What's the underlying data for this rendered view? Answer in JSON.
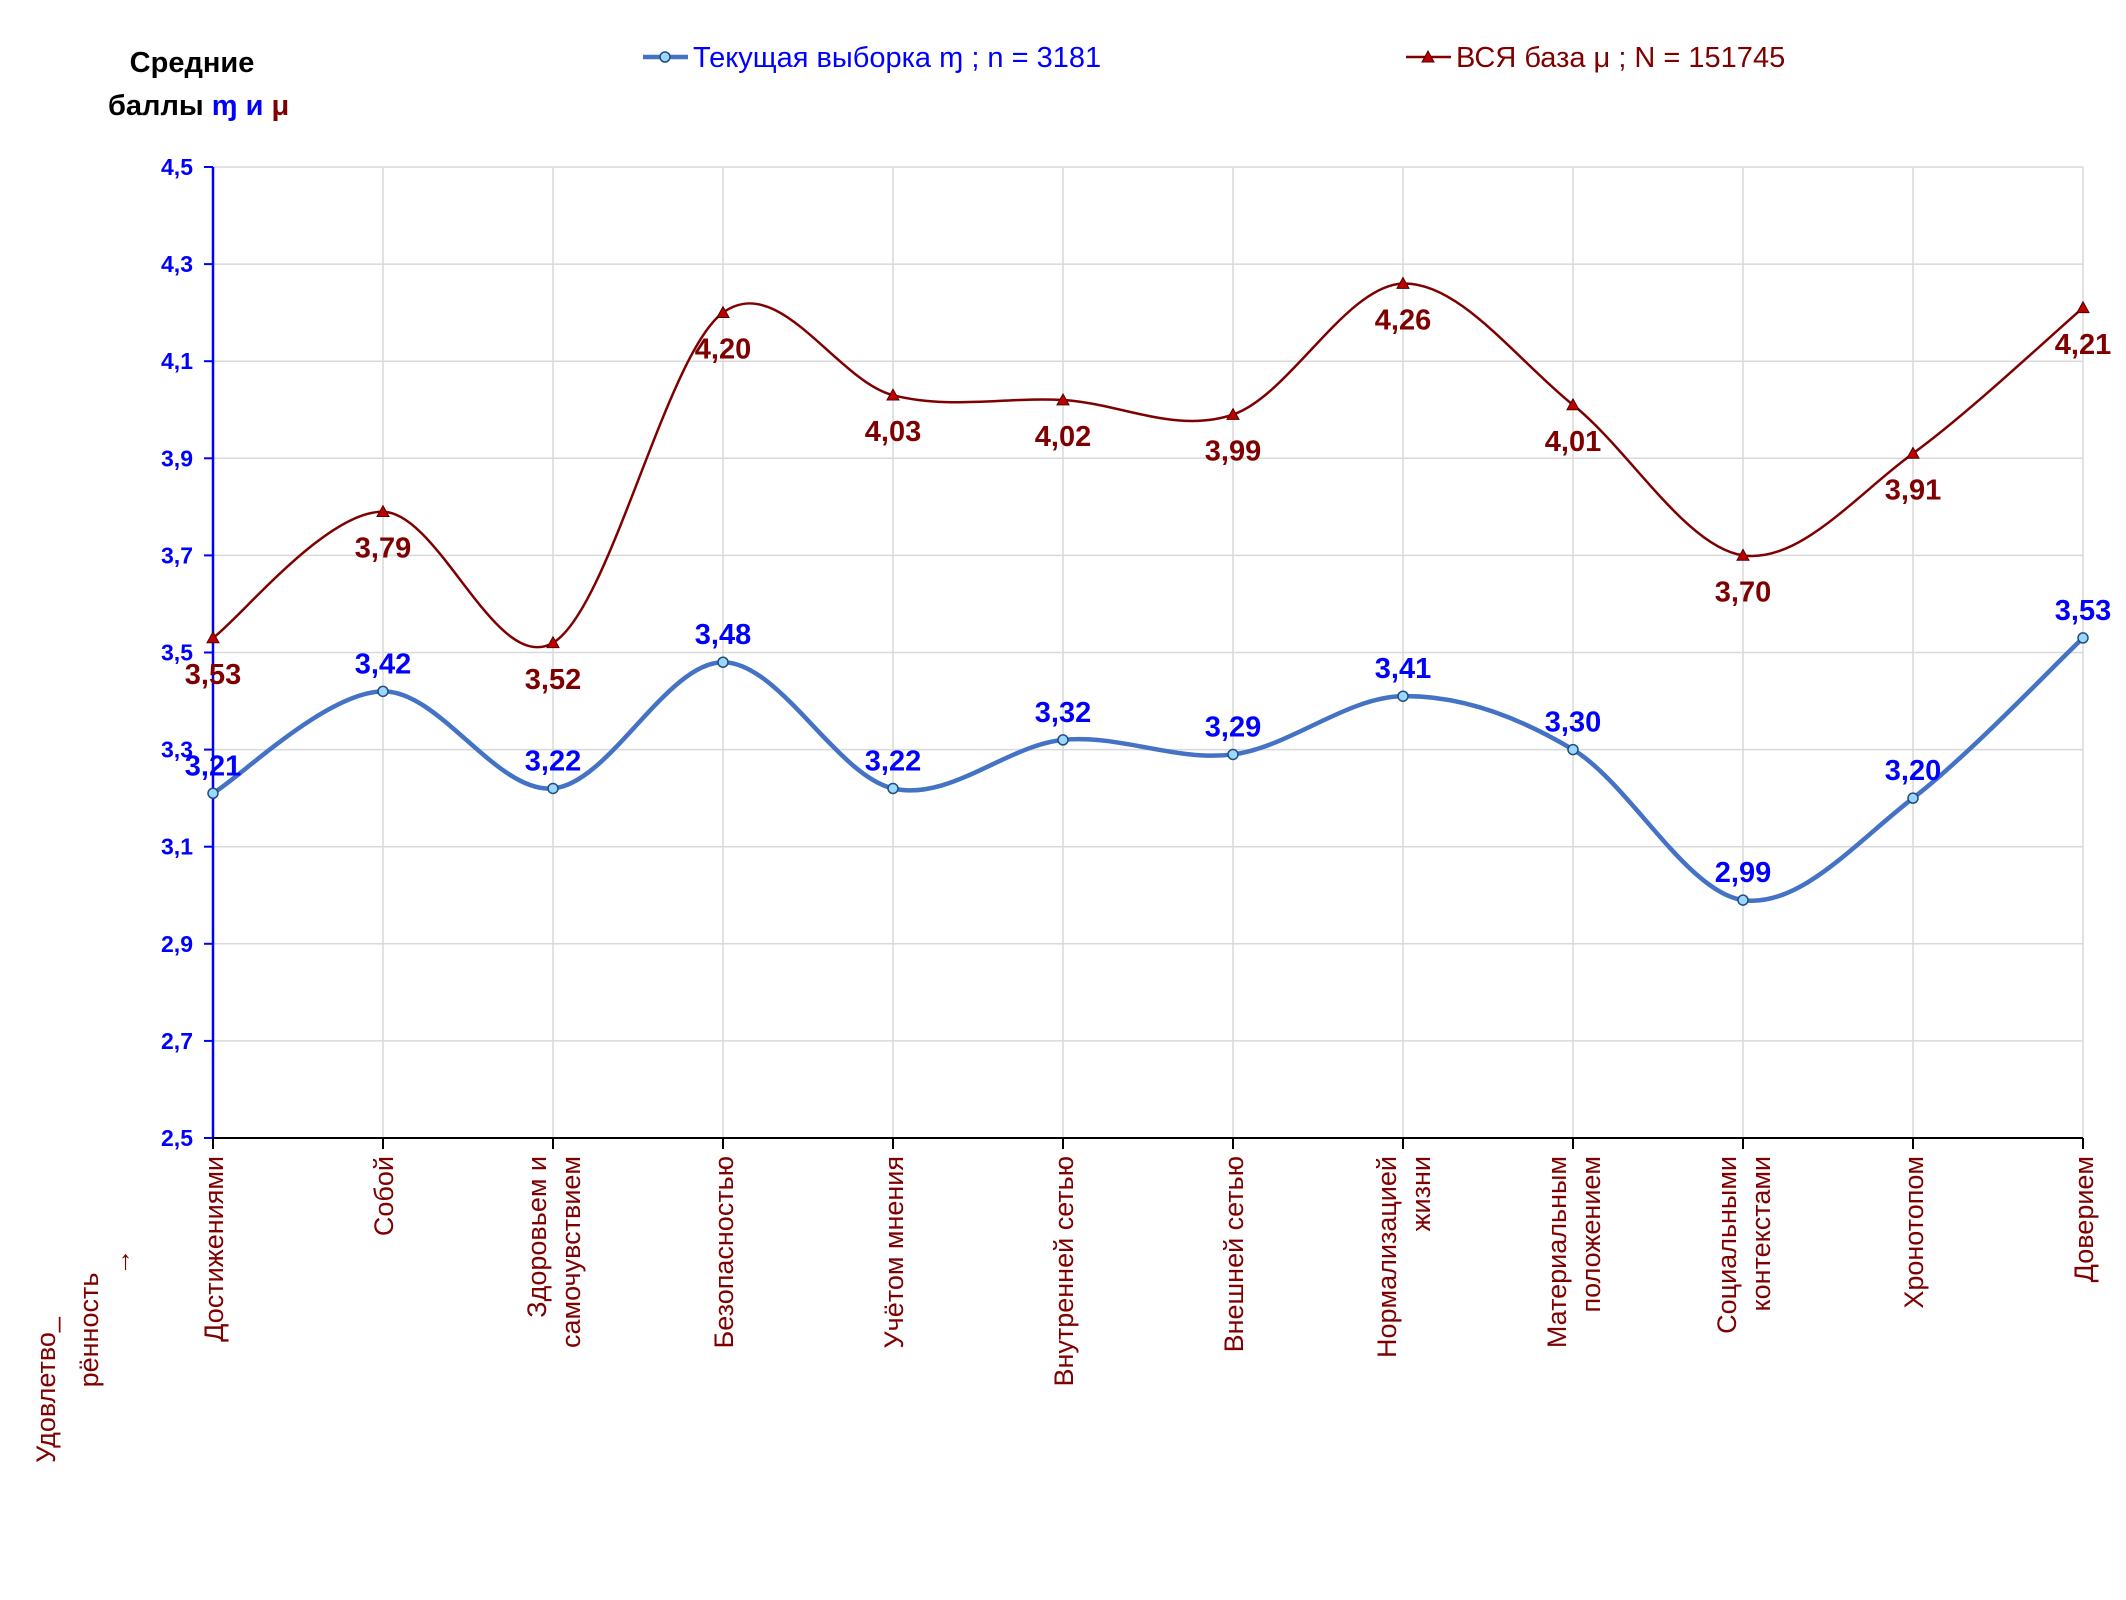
{
  "chart_data": {
    "type": "line",
    "y_title": {
      "line1": "Средние",
      "line2_prefix": "баллы ",
      "sym_sample": "ɱ",
      "conj": " и ",
      "sym_base": "μ"
    },
    "x_title": [
      "Удовлетво_",
      "рённость",
      "→"
    ],
    "categories": [
      [
        "Достижениями"
      ],
      [
        "Собой"
      ],
      [
        "Здоровьем и",
        "самочувствием"
      ],
      [
        "Безопасностью"
      ],
      [
        "Учётом мнения"
      ],
      [
        "Внутренней сетью"
      ],
      [
        "Внешней сетью"
      ],
      [
        "Нормализацией",
        "жизни"
      ],
      [
        "Материальным",
        "положением"
      ],
      [
        "Социальными",
        "контекстами"
      ],
      [
        "Хронотопом"
      ],
      [
        "Доверием"
      ]
    ],
    "ylim": [
      2.5,
      4.5
    ],
    "yticks": [
      "2,5",
      "2,7",
      "2,9",
      "3,1",
      "3,3",
      "3,5",
      "3,7",
      "3,9",
      "4,1",
      "4,3",
      "4,5"
    ],
    "ytick_values": [
      2.5,
      2.7,
      2.9,
      3.1,
      3.3,
      3.5,
      3.7,
      3.9,
      4.1,
      4.3,
      4.5
    ],
    "grid": true,
    "legend_position": "top",
    "series": [
      {
        "name": "Текущая выборка ɱ ; n = 3181",
        "color": "#4472c4",
        "label_color": "#0000ff",
        "marker": "circle",
        "values": [
          3.21,
          3.42,
          3.22,
          3.48,
          3.22,
          3.32,
          3.29,
          3.41,
          3.3,
          2.99,
          3.2,
          3.53
        ],
        "labels": [
          "3,21",
          "3,42",
          "3,22",
          "3,48",
          "3,22",
          "3,32",
          "3,29",
          "3,41",
          "3,30",
          "2,99",
          "3,20",
          "3,53"
        ]
      },
      {
        "name": "ВСЯ база μ ; N = 151745",
        "color": "#7f0000",
        "label_color": "#7f0000",
        "marker": "triangle",
        "values": [
          3.53,
          3.79,
          3.52,
          4.2,
          4.03,
          4.02,
          3.99,
          4.26,
          4.01,
          3.7,
          3.91,
          4.21
        ],
        "labels": [
          "3,53",
          "3,79",
          "3,52",
          "4,20",
          "4,03",
          "4,02",
          "3,99",
          "4,26",
          "4,01",
          "3,70",
          "3,91",
          "4,21"
        ]
      }
    ],
    "colors": {
      "axis": "#0000ff",
      "grid": "#d9d9d9",
      "category_text": "#7f0000",
      "ytick_text": "#0000ff",
      "y_title_text": "#000000"
    }
  }
}
